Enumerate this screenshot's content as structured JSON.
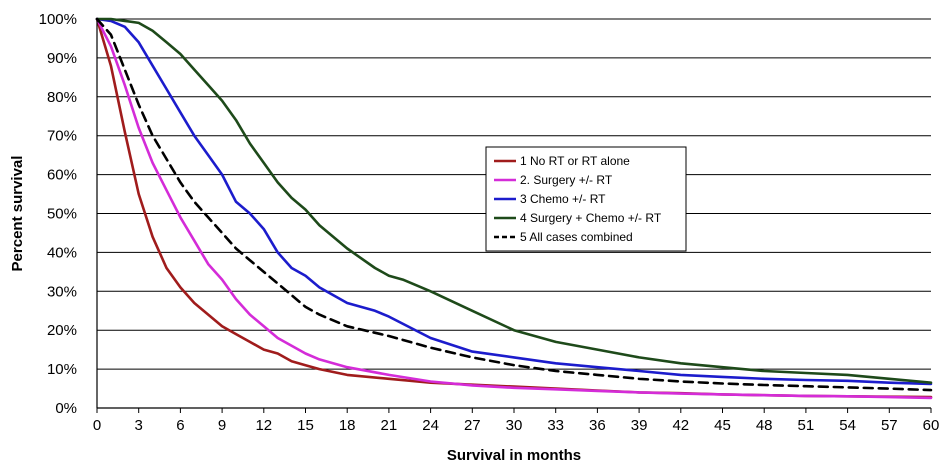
{
  "chart_data": {
    "type": "line",
    "xlabel": "Survival in months",
    "ylabel": "Percent survival",
    "xlim": [
      0,
      60
    ],
    "ylim": [
      0,
      100
    ],
    "x_ticks": [
      0,
      3,
      6,
      9,
      12,
      15,
      18,
      21,
      24,
      27,
      30,
      33,
      36,
      39,
      42,
      45,
      48,
      51,
      54,
      57,
      60
    ],
    "y_ticks": [
      0,
      10,
      20,
      30,
      40,
      50,
      60,
      70,
      80,
      90,
      100
    ],
    "x_tick_labels": [
      "0",
      "3",
      "6",
      "9",
      "12",
      "15",
      "18",
      "21",
      "24",
      "27",
      "30",
      "33",
      "36",
      "39",
      "42",
      "45",
      "48",
      "51",
      "54",
      "57",
      "60"
    ],
    "y_tick_labels": [
      "0%",
      "10%",
      "20%",
      "30%",
      "40%",
      "50%",
      "60%",
      "70%",
      "80%",
      "90%",
      "100%"
    ],
    "grid": "horizontal",
    "legend_position": "right-center",
    "series": [
      {
        "name": "1 No RT or RT alone",
        "color": "#a01c1c",
        "dash": "solid",
        "points": [
          [
            0,
            100
          ],
          [
            1,
            88
          ],
          [
            2,
            71
          ],
          [
            3,
            55
          ],
          [
            4,
            44
          ],
          [
            5,
            36
          ],
          [
            6,
            31
          ],
          [
            7,
            27
          ],
          [
            8,
            24
          ],
          [
            9,
            21
          ],
          [
            10,
            19
          ],
          [
            11,
            17
          ],
          [
            12,
            15
          ],
          [
            13,
            14
          ],
          [
            14,
            12
          ],
          [
            15,
            11
          ],
          [
            16,
            10
          ],
          [
            18,
            8.5
          ],
          [
            21,
            7.5
          ],
          [
            24,
            6.5
          ],
          [
            27,
            6
          ],
          [
            30,
            5.5
          ],
          [
            33,
            5
          ],
          [
            36,
            4.5
          ],
          [
            39,
            4
          ],
          [
            42,
            3.8
          ],
          [
            45,
            3.5
          ],
          [
            48,
            3.3
          ],
          [
            51,
            3.1
          ],
          [
            54,
            3
          ],
          [
            57,
            2.9
          ],
          [
            60,
            2.8
          ]
        ]
      },
      {
        "name": "2. Surgery +/- RT",
        "color": "#d42cd8",
        "dash": "solid",
        "points": [
          [
            0,
            100
          ],
          [
            1,
            93
          ],
          [
            2,
            83
          ],
          [
            3,
            72
          ],
          [
            4,
            63
          ],
          [
            5,
            56
          ],
          [
            6,
            49
          ],
          [
            7,
            43
          ],
          [
            8,
            37
          ],
          [
            9,
            33
          ],
          [
            10,
            28
          ],
          [
            11,
            24
          ],
          [
            12,
            21
          ],
          [
            13,
            18
          ],
          [
            14,
            16
          ],
          [
            15,
            14
          ],
          [
            16,
            12.5
          ],
          [
            18,
            10.5
          ],
          [
            21,
            8.5
          ],
          [
            24,
            6.8
          ],
          [
            27,
            5.8
          ],
          [
            30,
            5.2
          ],
          [
            33,
            4.8
          ],
          [
            36,
            4.4
          ],
          [
            39,
            4
          ],
          [
            42,
            3.7
          ],
          [
            45,
            3.5
          ],
          [
            48,
            3.3
          ],
          [
            51,
            3.1
          ],
          [
            54,
            3
          ],
          [
            57,
            2.8
          ],
          [
            60,
            2.6
          ]
        ]
      },
      {
        "name": "3 Chemo +/- RT",
        "color": "#1c1ccc",
        "dash": "solid",
        "points": [
          [
            0,
            100
          ],
          [
            1,
            99.5
          ],
          [
            2,
            98
          ],
          [
            3,
            94
          ],
          [
            4,
            88
          ],
          [
            5,
            82
          ],
          [
            6,
            76
          ],
          [
            7,
            70
          ],
          [
            8,
            65
          ],
          [
            9,
            60
          ],
          [
            10,
            53
          ],
          [
            11,
            50
          ],
          [
            12,
            46
          ],
          [
            13,
            40
          ],
          [
            14,
            36
          ],
          [
            15,
            34
          ],
          [
            16,
            31
          ],
          [
            18,
            27
          ],
          [
            20,
            25
          ],
          [
            21,
            23.5
          ],
          [
            24,
            18
          ],
          [
            27,
            14.5
          ],
          [
            30,
            13
          ],
          [
            33,
            11.5
          ],
          [
            36,
            10.5
          ],
          [
            39,
            9.5
          ],
          [
            42,
            8.5
          ],
          [
            45,
            8
          ],
          [
            48,
            7.5
          ],
          [
            51,
            7.2
          ],
          [
            54,
            7
          ],
          [
            57,
            6.5
          ],
          [
            60,
            6.2
          ]
        ]
      },
      {
        "name": "4 Surgery + Chemo +/- RT",
        "color": "#1e4a1a",
        "dash": "solid",
        "points": [
          [
            0,
            100
          ],
          [
            1,
            100
          ],
          [
            2,
            99.5
          ],
          [
            3,
            99
          ],
          [
            4,
            97
          ],
          [
            5,
            94
          ],
          [
            6,
            91
          ],
          [
            7,
            87
          ],
          [
            8,
            83
          ],
          [
            9,
            79
          ],
          [
            10,
            74
          ],
          [
            11,
            68
          ],
          [
            12,
            63
          ],
          [
            13,
            58
          ],
          [
            14,
            54
          ],
          [
            15,
            51
          ],
          [
            16,
            47
          ],
          [
            18,
            41
          ],
          [
            20,
            36
          ],
          [
            21,
            34
          ],
          [
            22,
            33
          ],
          [
            24,
            30
          ],
          [
            27,
            25
          ],
          [
            30,
            20
          ],
          [
            33,
            17
          ],
          [
            36,
            15
          ],
          [
            39,
            13
          ],
          [
            42,
            11.5
          ],
          [
            45,
            10.5
          ],
          [
            48,
            9.5
          ],
          [
            51,
            9
          ],
          [
            54,
            8.5
          ],
          [
            57,
            7.5
          ],
          [
            60,
            6.5
          ]
        ]
      },
      {
        "name": "5 All cases combined",
        "color": "#000000",
        "dash": "dashed",
        "points": [
          [
            0,
            100
          ],
          [
            1,
            96
          ],
          [
            2,
            87
          ],
          [
            3,
            78
          ],
          [
            4,
            70
          ],
          [
            5,
            64
          ],
          [
            6,
            58
          ],
          [
            7,
            53
          ],
          [
            8,
            49
          ],
          [
            9,
            45
          ],
          [
            10,
            41
          ],
          [
            11,
            38
          ],
          [
            12,
            35
          ],
          [
            13,
            32
          ],
          [
            14,
            29
          ],
          [
            15,
            26
          ],
          [
            16,
            24
          ],
          [
            18,
            21
          ],
          [
            21,
            18.5
          ],
          [
            24,
            15.5
          ],
          [
            27,
            13
          ],
          [
            30,
            11
          ],
          [
            33,
            9.5
          ],
          [
            36,
            8.5
          ],
          [
            39,
            7.5
          ],
          [
            42,
            6.8
          ],
          [
            45,
            6.3
          ],
          [
            48,
            5.9
          ],
          [
            51,
            5.6
          ],
          [
            54,
            5.3
          ],
          [
            57,
            5
          ],
          [
            60,
            4.6
          ]
        ]
      }
    ]
  }
}
